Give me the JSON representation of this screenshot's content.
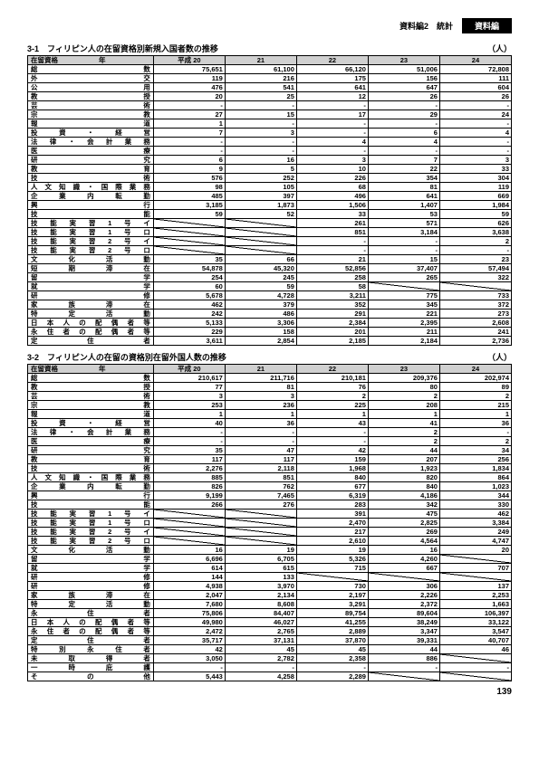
{
  "header": {
    "text": "資料編2　統計",
    "badge": "資料編"
  },
  "pageNumber": "139",
  "unit": "（人）",
  "yearHeader": {
    "label": "在留資格　　　　　　年",
    "cols": [
      "平成 20",
      "21",
      "22",
      "23",
      "24"
    ]
  },
  "table1": {
    "title": "3-1　フィリピン人の在留資格別新規入国者数の推移",
    "rows": [
      {
        "l": "総数",
        "v": [
          "75,651",
          "61,100",
          "66,120",
          "51,006",
          "72,808"
        ]
      },
      {
        "l": "外交",
        "v": [
          "119",
          "216",
          "175",
          "156",
          "111"
        ]
      },
      {
        "l": "公用",
        "v": [
          "476",
          "541",
          "641",
          "647",
          "604"
        ]
      },
      {
        "l": "教授",
        "v": [
          "20",
          "25",
          "12",
          "26",
          "26"
        ]
      },
      {
        "l": "芸術",
        "v": [
          "-",
          "-",
          "-",
          "-",
          "-"
        ]
      },
      {
        "l": "宗教",
        "v": [
          "27",
          "15",
          "17",
          "29",
          "24"
        ]
      },
      {
        "l": "報道",
        "v": [
          "1",
          "-",
          "-",
          "-",
          "-"
        ]
      },
      {
        "l": "投資・経営",
        "v": [
          "7",
          "3",
          "-",
          "6",
          "4"
        ]
      },
      {
        "l": "法律・会計業務",
        "v": [
          "-",
          "-",
          "4",
          "4",
          "-"
        ]
      },
      {
        "l": "医療",
        "v": [
          "-",
          "-",
          "-",
          "-",
          "-"
        ]
      },
      {
        "l": "研究",
        "v": [
          "6",
          "16",
          "3",
          "7",
          "3"
        ]
      },
      {
        "l": "教育",
        "v": [
          "9",
          "5",
          "10",
          "22",
          "33"
        ]
      },
      {
        "l": "技術",
        "v": [
          "576",
          "252",
          "226",
          "354",
          "304"
        ]
      },
      {
        "l": "人文知識・国際業務",
        "v": [
          "98",
          "105",
          "68",
          "81",
          "119"
        ]
      },
      {
        "l": "企業内転勤",
        "v": [
          "485",
          "397",
          "496",
          "641",
          "669"
        ]
      },
      {
        "l": "興行",
        "v": [
          "3,185",
          "1,873",
          "1,506",
          "1,407",
          "1,984"
        ]
      },
      {
        "l": "技能",
        "v": [
          "59",
          "52",
          "33",
          "53",
          "59"
        ]
      },
      {
        "l": "技能実習1号イ",
        "v": [
          "diag",
          "diag",
          "261",
          "571",
          "626"
        ]
      },
      {
        "l": "技能実習1号ロ",
        "v": [
          "diag",
          "diag",
          "851",
          "3,184",
          "3,638"
        ]
      },
      {
        "l": "技能実習2号イ",
        "v": [
          "diag",
          "diag",
          "-",
          "-",
          "2"
        ]
      },
      {
        "l": "技能実習2号ロ",
        "v": [
          "diag",
          "diag",
          "-",
          "-",
          "-"
        ]
      },
      {
        "l": "文化活動",
        "v": [
          "35",
          "66",
          "21",
          "15",
          "23"
        ]
      },
      {
        "l": "短期滞在",
        "v": [
          "54,878",
          "45,320",
          "52,856",
          "37,407",
          "57,494"
        ]
      },
      {
        "l": "留学",
        "v": [
          "254",
          "245",
          "258",
          "265",
          "322"
        ]
      },
      {
        "l": "就学",
        "v": [
          "60",
          "59",
          "58",
          "diag",
          "diag"
        ]
      },
      {
        "l": "研修",
        "v": [
          "5,678",
          "4,728",
          "3,211",
          "775",
          "733"
        ]
      },
      {
        "l": "家族滞在",
        "v": [
          "462",
          "379",
          "352",
          "345",
          "372"
        ]
      },
      {
        "l": "特定活動",
        "v": [
          "242",
          "486",
          "291",
          "221",
          "273"
        ]
      },
      {
        "l": "日本人の配偶者等",
        "v": [
          "5,133",
          "3,306",
          "2,384",
          "2,395",
          "2,608"
        ]
      },
      {
        "l": "永住者の配偶者等",
        "v": [
          "229",
          "158",
          "201",
          "211",
          "241"
        ]
      },
      {
        "l": "定住者",
        "v": [
          "3,611",
          "2,854",
          "2,185",
          "2,184",
          "2,736"
        ]
      }
    ]
  },
  "table2": {
    "title": "3-2　フィリピン人の在留の資格別在留外国人数の推移",
    "rows": [
      {
        "l": "総数",
        "v": [
          "210,617",
          "211,716",
          "210,181",
          "209,376",
          "202,974"
        ]
      },
      {
        "l": "教授",
        "v": [
          "77",
          "81",
          "76",
          "80",
          "89"
        ]
      },
      {
        "l": "芸術",
        "v": [
          "3",
          "3",
          "2",
          "2",
          "2"
        ]
      },
      {
        "l": "宗教",
        "v": [
          "253",
          "236",
          "225",
          "208",
          "215"
        ]
      },
      {
        "l": "報道",
        "v": [
          "1",
          "1",
          "1",
          "1",
          "1"
        ]
      },
      {
        "l": "投資・経営",
        "v": [
          "40",
          "36",
          "43",
          "41",
          "36"
        ]
      },
      {
        "l": "法律・会計業務",
        "v": [
          "-",
          "-",
          "-",
          "2",
          "-"
        ]
      },
      {
        "l": "医療",
        "v": [
          "-",
          "-",
          "-",
          "2",
          "2"
        ]
      },
      {
        "l": "研究",
        "v": [
          "35",
          "47",
          "42",
          "44",
          "34"
        ]
      },
      {
        "l": "教育",
        "v": [
          "117",
          "117",
          "159",
          "207",
          "256"
        ]
      },
      {
        "l": "技術",
        "v": [
          "2,276",
          "2,118",
          "1,968",
          "1,923",
          "1,834"
        ]
      },
      {
        "l": "人文知識・国際業務",
        "v": [
          "885",
          "851",
          "840",
          "820",
          "864"
        ]
      },
      {
        "l": "企業内転勤",
        "v": [
          "826",
          "762",
          "677",
          "840",
          "1,023"
        ]
      },
      {
        "l": "興行",
        "v": [
          "9,199",
          "7,465",
          "6,319",
          "4,186",
          "344"
        ]
      },
      {
        "l": "技能",
        "v": [
          "266",
          "276",
          "283",
          "342",
          "330"
        ]
      },
      {
        "l": "技能実習1号イ",
        "v": [
          "diag",
          "diag",
          "391",
          "475",
          "462"
        ]
      },
      {
        "l": "技能実習1号ロ",
        "v": [
          "diag",
          "diag",
          "2,470",
          "2,825",
          "3,384"
        ]
      },
      {
        "l": "技能実習2号イ",
        "v": [
          "diag",
          "diag",
          "217",
          "269",
          "249"
        ]
      },
      {
        "l": "技能実習2号ロ",
        "v": [
          "diag",
          "diag",
          "2,610",
          "4,564",
          "4,747"
        ]
      },
      {
        "l": "文化活動",
        "v": [
          "16",
          "19",
          "19",
          "16",
          "20"
        ]
      },
      {
        "l": "留学",
        "v": [
          "6,696",
          "6,705",
          "5,326",
          "4,260",
          "diag"
        ]
      },
      {
        "l": "就学",
        "v": [
          "614",
          "615",
          "715",
          "667",
          "707"
        ]
      },
      {
        "l": "研修",
        "v": [
          "144",
          "133",
          "diag",
          "diag",
          "diag"
        ]
      },
      {
        "l": "研修",
        "v": [
          "4,938",
          "3,970",
          "730",
          "306",
          "137"
        ]
      },
      {
        "l": "家族滞在",
        "v": [
          "2,047",
          "2,134",
          "2,197",
          "2,226",
          "2,253"
        ]
      },
      {
        "l": "特定活動",
        "v": [
          "7,680",
          "8,608",
          "3,291",
          "2,372",
          "1,663"
        ]
      },
      {
        "l": "永住者",
        "v": [
          "75,806",
          "84,407",
          "89,754",
          "89,604",
          "106,397"
        ]
      },
      {
        "l": "日本人の配偶者等",
        "v": [
          "49,980",
          "46,027",
          "41,255",
          "38,249",
          "33,122"
        ]
      },
      {
        "l": "永住者の配偶者等",
        "v": [
          "2,472",
          "2,765",
          "2,889",
          "3,347",
          "3,547"
        ]
      },
      {
        "l": "定住者",
        "v": [
          "35,717",
          "37,131",
          "37,870",
          "39,331",
          "40,707"
        ]
      },
      {
        "l": "特別永住者",
        "v": [
          "42",
          "45",
          "45",
          "44",
          "46"
        ]
      },
      {
        "l": "未取得者",
        "v": [
          "3,050",
          "2,782",
          "2,358",
          "886",
          "diag"
        ]
      },
      {
        "l": "一時庇護",
        "v": [
          "-",
          "-",
          "-",
          "-",
          "-"
        ]
      },
      {
        "l": "その他",
        "v": [
          "5,443",
          "4,258",
          "2,289",
          "diag",
          "diag"
        ]
      }
    ]
  }
}
